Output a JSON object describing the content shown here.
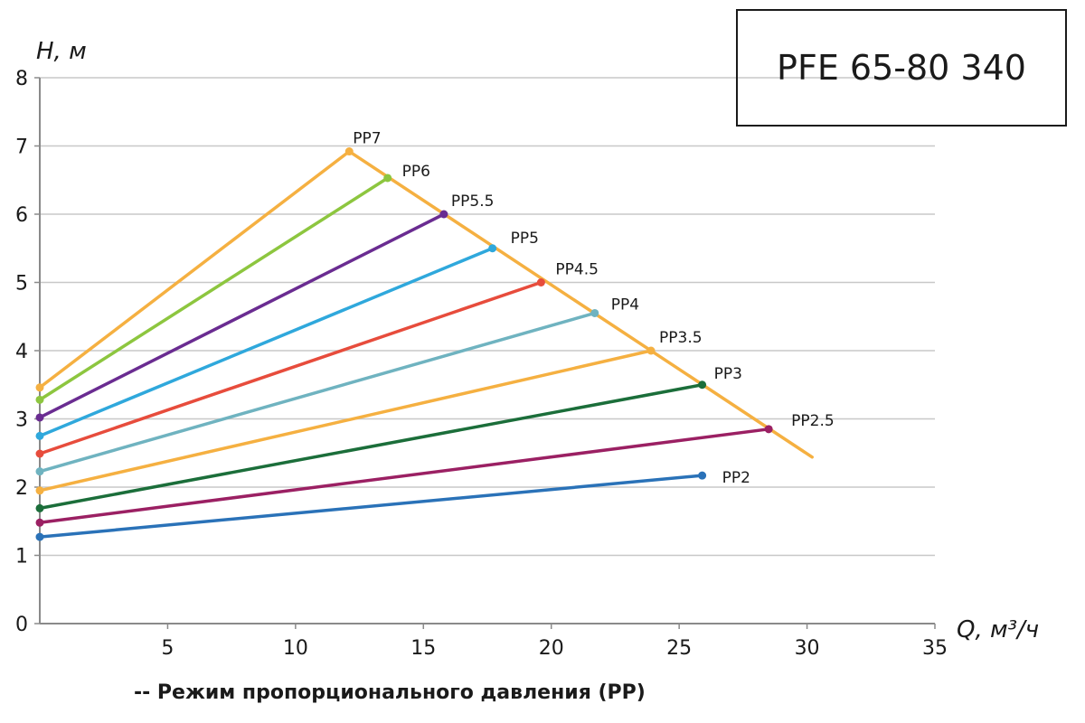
{
  "chart_data": {
    "type": "line",
    "title": "PFE 65-80 340",
    "xlabel": "Q, м³/ч",
    "ylabel": "H, м",
    "xlim": [
      0,
      35
    ],
    "ylim": [
      0,
      8
    ],
    "xticks": [
      5,
      10,
      15,
      20,
      25,
      30,
      35
    ],
    "yticks": [
      0,
      1,
      2,
      3,
      4,
      5,
      6,
      7,
      8
    ],
    "grid": "horizontal",
    "footnote": "-- Режим пропорционального давления (PP)",
    "series": [
      {
        "name": "PP2",
        "color": "#2a72b8",
        "x": [
          0,
          25.9
        ],
        "y": [
          1.27,
          2.17
        ]
      },
      {
        "name": "PP2.5",
        "color": "#9b2063",
        "x": [
          0,
          28.5
        ],
        "y": [
          1.48,
          2.85
        ]
      },
      {
        "name": "PP3",
        "color": "#1b6e3a",
        "x": [
          0,
          25.9
        ],
        "y": [
          1.69,
          3.5
        ]
      },
      {
        "name": "PP3.5",
        "color": "#f5b041",
        "x": [
          0,
          23.9
        ],
        "y": [
          1.95,
          4.0
        ]
      },
      {
        "name": "PP4",
        "color": "#6fb3c0",
        "x": [
          0,
          21.7
        ],
        "y": [
          2.23,
          4.55
        ]
      },
      {
        "name": "PP4.5",
        "color": "#e74c3c",
        "x": [
          0,
          19.6
        ],
        "y": [
          2.49,
          5.0
        ]
      },
      {
        "name": "PP5",
        "color": "#2fa8dc",
        "x": [
          0,
          17.7
        ],
        "y": [
          2.75,
          5.5
        ]
      },
      {
        "name": "PP5.5",
        "color": "#6a2c91",
        "x": [
          0,
          15.8
        ],
        "y": [
          3.02,
          6.0
        ]
      },
      {
        "name": "PP6",
        "color": "#8dc63f",
        "x": [
          0,
          13.6
        ],
        "y": [
          3.28,
          6.53
        ]
      },
      {
        "name": "PP7",
        "color": "#f5b041",
        "x": [
          0,
          12.1
        ],
        "y": [
          3.46,
          6.92
        ]
      }
    ],
    "envelope": {
      "color": "#f5b041",
      "x": [
        12.1,
        30.2
      ],
      "y": [
        6.92,
        2.44
      ]
    }
  }
}
